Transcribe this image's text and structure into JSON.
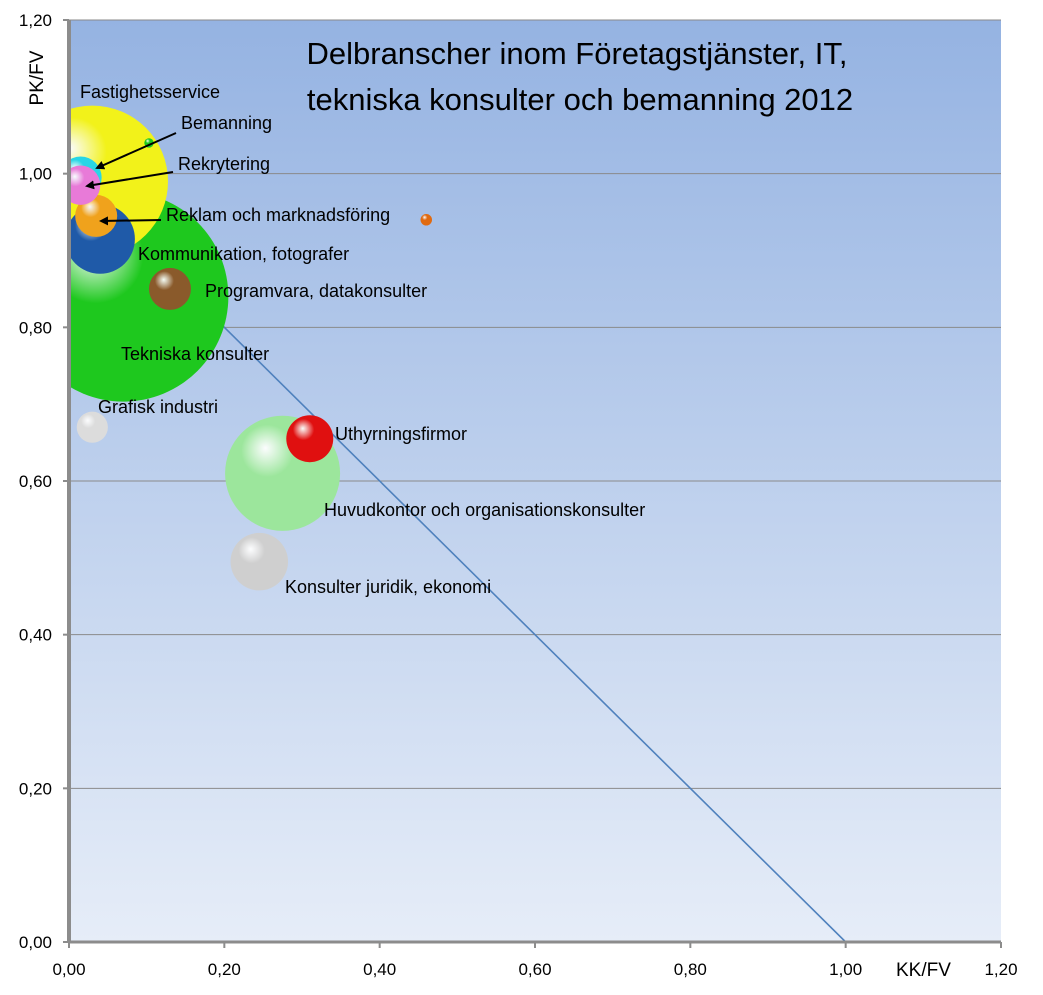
{
  "chart_data": {
    "type": "bubble",
    "title_lines": [
      "Delbranscher inom Företagstjänster, IT,",
      "tekniska konsulter och bemanning 2012"
    ],
    "xlabel": "KK/FV",
    "ylabel": "PK/FV",
    "xlim": [
      0,
      1.2
    ],
    "ylim": [
      0,
      1.2
    ],
    "x_ticks": [
      "0,00",
      "0,20",
      "0,40",
      "0,60",
      "0,80",
      "1,00",
      "1,20"
    ],
    "y_ticks": [
      "0,00",
      "0,20",
      "0,40",
      "0,60",
      "0,80",
      "1,00",
      "1,20"
    ],
    "grid": "horizontal",
    "reference_line": {
      "from": [
        0,
        1.0
      ],
      "to": [
        1.0,
        0
      ],
      "color": "#4f81bd"
    },
    "series": [
      {
        "name": "Tekniska konsulter",
        "x": 0.07,
        "y": 0.84,
        "size": 1.0,
        "color": "#1ec81e"
      },
      {
        "name": "Fastighetsservice",
        "x": 0.03,
        "y": 0.99,
        "size": 0.52,
        "color": "#f2f21a"
      },
      {
        "name": "Huvudkontor och organisationskonsulter",
        "x": 0.275,
        "y": 0.61,
        "size": 0.3,
        "color": "#9ce69c"
      },
      {
        "name": "Kommunikation, fotografer",
        "x": 0.04,
        "y": 0.915,
        "size": 0.11,
        "color": "#1f5aa8"
      },
      {
        "name": "Konsulter juridik, ekonomi",
        "x": 0.245,
        "y": 0.495,
        "size": 0.075,
        "color": "#cfcfcf"
      },
      {
        "name": "Programvara, datakonsulter",
        "x": 0.13,
        "y": 0.85,
        "size": 0.04,
        "color": "#8a5a2b"
      },
      {
        "name": "Uthyrningsfirmor",
        "x": 0.31,
        "y": 0.655,
        "size": 0.05,
        "color": "#e01010"
      },
      {
        "name": "Reklam och marknadsföring",
        "x": 0.035,
        "y": 0.945,
        "size": 0.04,
        "color": "#f0a21c"
      },
      {
        "name": "Rekrytering",
        "x": 0.015,
        "y": 0.985,
        "size": 0.035,
        "color": "#e87ad8"
      },
      {
        "name": "Bemanning",
        "x": 0.015,
        "y": 0.995,
        "size": 0.04,
        "color": "#28d6e6"
      },
      {
        "name": "Grafisk industri",
        "x": 0.03,
        "y": 0.67,
        "size": 0.022,
        "color": "#dcdcdc"
      },
      {
        "name": "",
        "x": 0.103,
        "y": 1.04,
        "size": 0.002,
        "color": "#1ec81e"
      },
      {
        "name": "",
        "x": 0.46,
        "y": 0.94,
        "size": 0.003,
        "color": "#e06a10"
      }
    ],
    "annotations": [
      {
        "text": "Fastighetsservice"
      },
      {
        "text": "Bemanning",
        "arrow": true
      },
      {
        "text": "Rekrytering",
        "arrow": true
      },
      {
        "text": "Reklam och marknadsföring",
        "arrow": true
      },
      {
        "text": "Kommunikation, fotografer"
      },
      {
        "text": "Programvara, datakonsulter"
      },
      {
        "text": "Tekniska konsulter"
      },
      {
        "text": "Grafisk industri"
      },
      {
        "text": "Uthyrningsfirmor"
      },
      {
        "text": "Huvudkontor och organisationskonsulter"
      },
      {
        "text": "Konsulter juridik, ekonomi"
      }
    ]
  }
}
